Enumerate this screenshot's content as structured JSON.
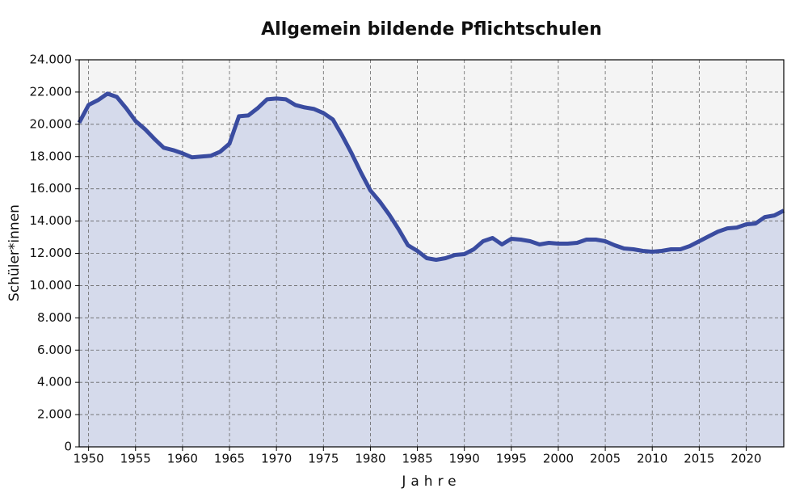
{
  "chart_data": {
    "type": "area",
    "title": "Allgemein bildende Pflichtschulen",
    "x_label": "Jahre",
    "y_label": "Schüler*innen",
    "x": [
      1949,
      1950,
      1951,
      1952,
      1953,
      1954,
      1955,
      1956,
      1957,
      1958,
      1959,
      1960,
      1961,
      1962,
      1963,
      1964,
      1965,
      1966,
      1967,
      1968,
      1969,
      1970,
      1971,
      1972,
      1973,
      1974,
      1975,
      1976,
      1977,
      1978,
      1979,
      1980,
      1981,
      1982,
      1983,
      1984,
      1985,
      1986,
      1987,
      1988,
      1989,
      1990,
      1991,
      1992,
      1993,
      1994,
      1995,
      1996,
      1997,
      1998,
      1999,
      2000,
      2001,
      2002,
      2003,
      2004,
      2005,
      2006,
      2007,
      2008,
      2009,
      2010,
      2011,
      2012,
      2013,
      2014,
      2015,
      2016,
      2017,
      2018,
      2019,
      2020,
      2021,
      2022,
      2023,
      2024
    ],
    "values": [
      20100,
      21200,
      21500,
      21900,
      21700,
      21000,
      20200,
      19700,
      19100,
      18550,
      18400,
      18200,
      17950,
      18000,
      18050,
      18300,
      18800,
      20500,
      20550,
      21000,
      21550,
      21600,
      21550,
      21200,
      21050,
      20950,
      20700,
      20300,
      19300,
      18200,
      17000,
      15900,
      15200,
      14400,
      13500,
      12500,
      12150,
      11700,
      11600,
      11700,
      11900,
      11950,
      12250,
      12750,
      12950,
      12550,
      12900,
      12850,
      12750,
      12550,
      12650,
      12600,
      12600,
      12650,
      12850,
      12850,
      12750,
      12500,
      12300,
      12250,
      12150,
      12100,
      12150,
      12250,
      12250,
      12450,
      12750,
      13050,
      13350,
      13550,
      13600,
      13800,
      13850,
      14250,
      14350,
      14650
    ],
    "line_color": "#3a4ca0",
    "fill_color": "#d5daeb",
    "xlim": [
      1949,
      2024
    ],
    "xticks": [
      1950,
      1955,
      1960,
      1965,
      1970,
      1975,
      1980,
      1985,
      1990,
      1995,
      2000,
      2005,
      2010,
      2015,
      2020
    ],
    "ylim": [
      0,
      24000
    ],
    "yticks": [
      0,
      {
        "value": 2000,
        "label": "2.000"
      },
      {
        "value": 4000,
        "label": "4.000"
      },
      {
        "value": 6000,
        "label": "6.000"
      },
      {
        "value": 8000,
        "label": "8.000"
      },
      {
        "value": 10000,
        "label": "10.000"
      },
      {
        "value": 12000,
        "label": "12.000"
      },
      {
        "value": 14000,
        "label": "14.000"
      },
      {
        "value": 16000,
        "label": "16.000"
      },
      {
        "value": 18000,
        "label": "18.000"
      },
      {
        "value": 20000,
        "label": "20.000"
      },
      {
        "value": 22000,
        "label": "22.000"
      },
      {
        "value": 24000,
        "label": "24.000"
      }
    ],
    "grid": true
  }
}
